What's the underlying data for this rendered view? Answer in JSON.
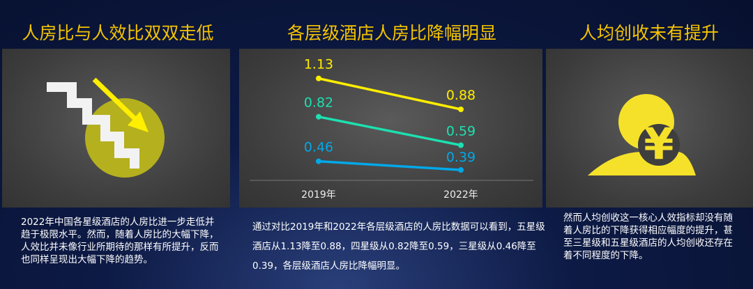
{
  "panels": [
    {
      "title": "人房比与人效比双双走低",
      "icon": "falling-stairs-arrow-icon",
      "text": "2022年中国各星级酒店的人房比进一步走低并趋于极限水平。然而，随着人房比的大幅下降，人效比并未像行业所期待的那样有所提升，反而也同样呈现出大幅下降的趋势。"
    },
    {
      "title": "各层级酒店人房比降幅明显",
      "text": "通过对比2019年和2022年各层级酒店的人房比数据可以看到，五星级酒店从1.13降至0.88，四星级从0.82降至0.59，三星级从0.46降至0.39，各层级酒店人房比降幅明显。"
    },
    {
      "title": "人均创收未有提升",
      "icon": "yen-coin-icon",
      "text": "然而人均创收这一核心人效指标却没有随着人房比的下降获得相应幅度的提升，甚至三星级和五星级酒店的人均创收还存在着不同程度的下降。"
    }
  ],
  "colors": {
    "title": "#f5c400",
    "five_star": "#ffee00",
    "four_star": "#1de0b0",
    "three_star": "#00a8e8",
    "panel": "#444444"
  },
  "chart_data": {
    "type": "line",
    "categories": [
      "2019年",
      "2022年"
    ],
    "ylim": [
      0.3,
      1.37
    ],
    "grid": false,
    "series": [
      {
        "values": [
          1.13,
          0.88
        ],
        "color": "#ffee00"
      },
      {
        "values": [
          0.82,
          0.59
        ],
        "color": "#1de0b0"
      },
      {
        "values": [
          0.46,
          0.39
        ],
        "color": "#00a8e8"
      }
    ]
  }
}
